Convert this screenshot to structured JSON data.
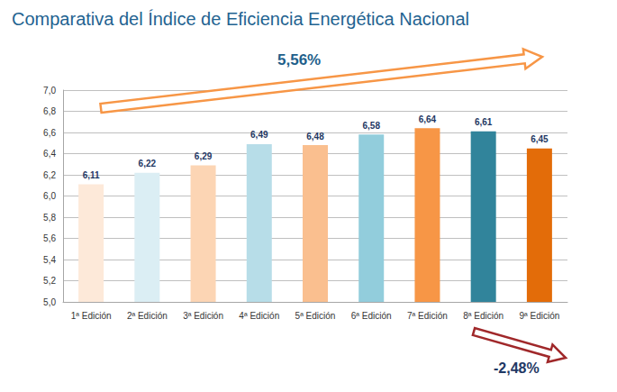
{
  "chart_data": {
    "type": "bar",
    "title": "Comparativa del Índice de Eficiencia Energética Nacional",
    "categories": [
      "1ª Edición",
      "2ª Edición",
      "3ª Edición",
      "4ª Edición",
      "5ª Edición",
      "6ª Edición",
      "7ª Edición",
      "8ª Edición",
      "9ª Edición"
    ],
    "values": [
      6.11,
      6.22,
      6.29,
      6.49,
      6.48,
      6.58,
      6.64,
      6.61,
      6.45
    ],
    "value_labels": [
      "6,11",
      "6,22",
      "6,29",
      "6,49",
      "6,48",
      "6,58",
      "6,64",
      "6,61",
      "6,45"
    ],
    "colors": [
      "#fde9d9",
      "#dbeef4",
      "#fcd5b4",
      "#b7dde8",
      "#fabf8f",
      "#92cddc",
      "#f79646",
      "#31849b",
      "#e36c09"
    ],
    "ylim": [
      5,
      7
    ],
    "yticks": [
      {
        "value": 5,
        "label": "5,0"
      },
      {
        "value": 5.2,
        "label": "5,2"
      },
      {
        "value": 5.4,
        "label": "5,4"
      },
      {
        "value": 5.6,
        "label": "5,6"
      },
      {
        "value": 5.8,
        "label": "5,8"
      },
      {
        "value": 6,
        "label": "6,0"
      },
      {
        "value": 6.2,
        "label": "6,2"
      },
      {
        "value": 6.4,
        "label": "6,4"
      },
      {
        "value": 6.6,
        "label": "6,6"
      },
      {
        "value": 6.8,
        "label": "6,8"
      },
      {
        "value": 7,
        "label": "7,0"
      }
    ],
    "grid": true,
    "data_labels": true,
    "annotations": [
      "5,56%",
      "-2,48%"
    ]
  }
}
